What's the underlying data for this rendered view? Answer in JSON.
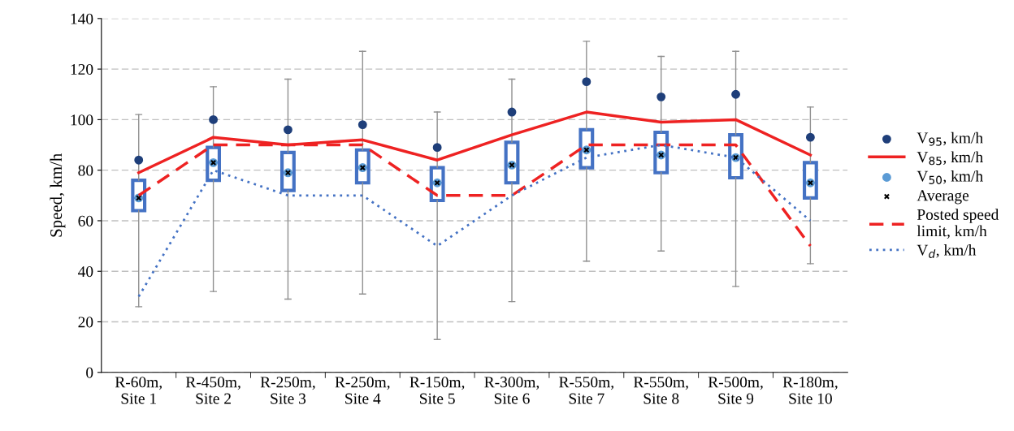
{
  "chart_data": {
    "type": "box",
    "ylabel": "Speed, km/h",
    "categories": [
      "R-60m,\nSite 1",
      "R-450m,\nSite 2",
      "R-250m,\nSite 3",
      "R-250m,\nSite 4",
      "R-150m,\nSite 5",
      "R-300m,\nSite 6",
      "R-550m,\nSite 7",
      "R-550m,\nSite 8",
      "R-500m,\nSite 9",
      "R-180m,\nSite 10"
    ],
    "boxes": [
      {
        "low": 26,
        "q1": 64,
        "median": 69,
        "q3": 76,
        "high": 102
      },
      {
        "low": 32,
        "q1": 76,
        "median": 83,
        "q3": 89,
        "high": 113
      },
      {
        "low": 29,
        "q1": 72,
        "median": 79,
        "q3": 87,
        "high": 116
      },
      {
        "low": 31,
        "q1": 75,
        "median": 81,
        "q3": 88,
        "high": 127
      },
      {
        "low": 13,
        "q1": 68,
        "median": 75,
        "q3": 81,
        "high": 103
      },
      {
        "low": 28,
        "q1": 75,
        "median": 82,
        "q3": 91,
        "high": 116
      },
      {
        "low": 44,
        "q1": 81,
        "median": 88,
        "q3": 96,
        "high": 131
      },
      {
        "low": 48,
        "q1": 79,
        "median": 86,
        "q3": 95,
        "high": 125
      },
      {
        "low": 34,
        "q1": 77,
        "median": 85,
        "q3": 94,
        "high": 127
      },
      {
        "low": 43,
        "q1": 69,
        "median": 75,
        "q3": 83,
        "high": 105
      }
    ],
    "color": "#4472c4",
    "series": [
      {
        "name": "V$_{95}$, km/h",
        "type": "scatter",
        "marker": "circle",
        "color": "#1f3f7a",
        "values": [
          84,
          100,
          96,
          98,
          89,
          103,
          115,
          109,
          110,
          93
        ]
      },
      {
        "name": "V$_{85}$, km/h",
        "type": "line",
        "marker": "none",
        "line_style": "solid",
        "color": "#ee2222",
        "values": [
          79,
          93,
          90,
          92,
          84,
          94,
          103,
          99,
          100,
          86
        ]
      },
      {
        "name": "V$_{50}$, km/h",
        "type": "scatter",
        "marker": "circle",
        "color": "#5b9bd5",
        "values": [
          69,
          83,
          79,
          81,
          75,
          82,
          88,
          86,
          85,
          75
        ]
      },
      {
        "name": "Average",
        "type": "scatter",
        "marker": "cross",
        "color": "#000000",
        "values": [
          69,
          83,
          79,
          81,
          75,
          82,
          88,
          86,
          85,
          75
        ]
      },
      {
        "name": "Posted speed\nlimit, km/h",
        "type": "line",
        "marker": "none",
        "line_style": "dashed",
        "color": "#ee2222",
        "values": [
          70,
          90,
          90,
          90,
          70,
          70,
          90,
          90,
          90,
          50
        ]
      },
      {
        "name": "V$_{d}$, km/h",
        "type": "line",
        "marker": "none",
        "line_style": "dotted",
        "color": "#4472c4",
        "values": [
          30,
          80,
          70,
          70,
          50,
          70,
          85,
          90,
          85,
          60
        ]
      }
    ],
    "ylim": [
      0,
      140
    ],
    "yticks": [
      0,
      20,
      40,
      60,
      80,
      100,
      120,
      140
    ],
    "grid": "y",
    "legend": "right"
  }
}
